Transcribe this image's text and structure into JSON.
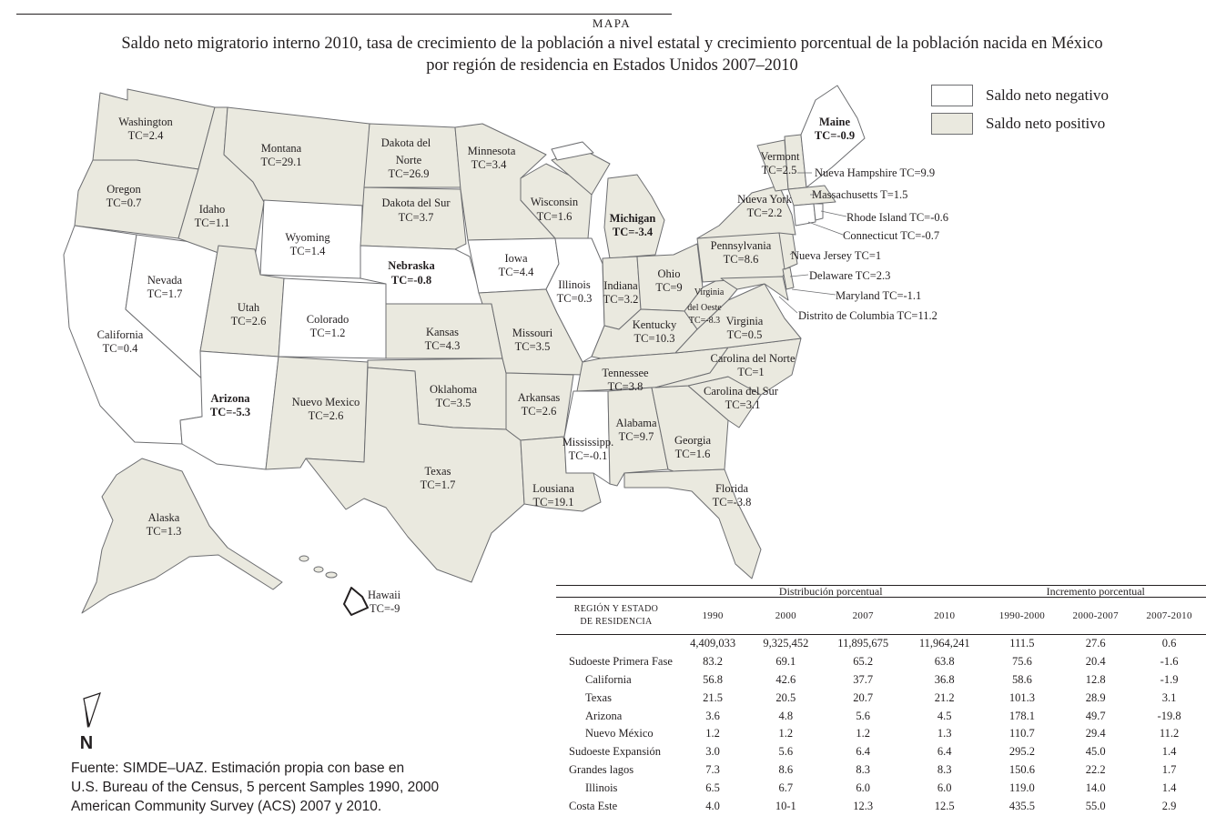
{
  "header": {
    "kicker": "MAPA",
    "title_line1": "Saldo neto migratorio interno 2010, tasa de crecimiento de la población a nivel estatal y crecimiento porcentual de la población nacida en México",
    "title_line2": "por región de residencia en Estados Unidos 2007–2010"
  },
  "legend": {
    "negative": "Saldo neto negativo",
    "positive": "Saldo neto positivo"
  },
  "colors": {
    "positive_fill": "#eae9df",
    "negative_fill": "#ffffff",
    "border": "#6d6e71",
    "text": "#231f20"
  },
  "states": {
    "washington": {
      "name": "Washington",
      "tc": "TC=2.4"
    },
    "oregon": {
      "name": "Oregon",
      "tc": "TC=0.7"
    },
    "california": {
      "name": "California",
      "tc": "TC=0.4"
    },
    "nevada": {
      "name": "Nevada",
      "tc": "TC=1.7"
    },
    "idaho": {
      "name": "Idaho",
      "tc": "TC=1.1"
    },
    "montana": {
      "name": "Montana",
      "tc": "TC=29.1"
    },
    "wyoming": {
      "name": "Wyoming",
      "tc": "TC=1.4"
    },
    "utah": {
      "name": "Utah",
      "tc": "TC=2.6"
    },
    "arizona": {
      "name": "Arizona",
      "tc": "TC=-5.3"
    },
    "colorado": {
      "name": "Colorado",
      "tc": "TC=1.2"
    },
    "nuevo_mexico": {
      "name": "Nuevo Mexico",
      "tc": "TC=2.6"
    },
    "dakota_norte": {
      "name1": "Dakota del",
      "name2": "Norte",
      "tc": "TC=26.9"
    },
    "dakota_sur": {
      "name": "Dakota del Sur",
      "tc": "TC=3.7"
    },
    "nebraska": {
      "name": "Nebraska",
      "tc": "TC=-0.8"
    },
    "kansas": {
      "name": "Kansas",
      "tc": "TC=4.3"
    },
    "oklahoma": {
      "name": "Oklahoma",
      "tc": "TC=3.5"
    },
    "texas": {
      "name": "Texas",
      "tc": "TC=1.7"
    },
    "minnesota": {
      "name": "Minnesota",
      "tc": "TC=3.4"
    },
    "iowa": {
      "name": "Iowa",
      "tc": "TC=4.4"
    },
    "missouri": {
      "name": "Missouri",
      "tc": "TC=3.5"
    },
    "arkansas": {
      "name": "Arkansas",
      "tc": "TC=2.6"
    },
    "louisiana": {
      "name": "Lousiana",
      "tc": "TC=19.1"
    },
    "wisconsin": {
      "name": "Wisconsin",
      "tc": "TC=1.6"
    },
    "illinois": {
      "name": "Illinois",
      "tc": "TC=0.3"
    },
    "michigan": {
      "name": "Michigan",
      "tc": "TC=-3.4"
    },
    "indiana": {
      "name": "Indiana",
      "tc": "TC=3.2"
    },
    "ohio": {
      "name": "Ohio",
      "tc": "TC=9"
    },
    "kentucky": {
      "name": "Kentucky",
      "tc": "TC=10.3"
    },
    "tennessee": {
      "name": "Tennessee",
      "tc": "TC=3.8"
    },
    "mississippi": {
      "name": "Mississipp.",
      "tc": "TC=-0.1"
    },
    "alabama": {
      "name": "Alabama",
      "tc": "TC=9.7"
    },
    "georgia": {
      "name": "Georgia",
      "tc": "TC=1.6"
    },
    "florida": {
      "name": "Florida",
      "tc": "TC=-3.8"
    },
    "carolina_sur": {
      "name": "Carolina del Sur",
      "tc": "TC=3.1"
    },
    "carolina_norte": {
      "name": "Carolina del Norte",
      "tc": "TC=1"
    },
    "virginia": {
      "name": "Virginia",
      "tc": "TC=0.5"
    },
    "virginia_oeste": {
      "name1": "Virginia",
      "name2": "del Oeste",
      "tc": "TC=-8.3"
    },
    "pennsylvania": {
      "name": "Pennsylvania",
      "tc": "TC=8.6"
    },
    "nueva_york": {
      "name": "Nueva York",
      "tc": "TC=2.2"
    },
    "vermont": {
      "name": "Vermont",
      "tc": "TC=2.5"
    },
    "maine": {
      "name": "Maine",
      "tc": "TC=-0.9"
    },
    "alaska": {
      "name": "Alaska",
      "tc": "TC=1.3"
    },
    "hawaii": {
      "name": "Hawaii",
      "tc": "TC=-9"
    }
  },
  "callouts": [
    "Nueva Hampshire TC=9.9",
    "Massachusetts T=1.5",
    "Rhode Island TC=-0.6",
    "Connecticut TC=-0.7",
    "Nueva Jersey TC=1",
    "Delaware TC=2.3",
    "Maryland TC=-1.1",
    "Distrito de Columbia TC=11.2"
  ],
  "compass": "N",
  "source": {
    "line1": "Fuente: SIMDE–UAZ. Estimación propia con base en",
    "line2": "U.S. Bureau of the Census, 5 percent Samples 1990, 2000",
    "line3": "American Community Survey (ACS) 2007 y 2010."
  },
  "table": {
    "group1": "Distribución porcentual",
    "group2": "Incremento porcentual",
    "col_region_line1": "REGIÓN Y ESTADO",
    "col_region_line2": "DE RESIDENCIA",
    "columns": [
      "1990",
      "2000",
      "2007",
      "2010",
      "1990-2000",
      "2000-2007",
      "2007-2010"
    ],
    "rows": [
      {
        "name": "",
        "indent": false,
        "values": [
          "4,409,033",
          "9,325,452",
          "11,895,675",
          "11,964,241",
          "111.5",
          "27.6",
          "0.6"
        ]
      },
      {
        "name": "Sudoeste Primera Fase",
        "indent": false,
        "values": [
          "83.2",
          "69.1",
          "65.2",
          "63.8",
          "75.6",
          "20.4",
          "-1.6"
        ]
      },
      {
        "name": "California",
        "indent": true,
        "values": [
          "56.8",
          "42.6",
          "37.7",
          "36.8",
          "58.6",
          "12.8",
          "-1.9"
        ]
      },
      {
        "name": "Texas",
        "indent": true,
        "values": [
          "21.5",
          "20.5",
          "20.7",
          "21.2",
          "101.3",
          "28.9",
          "3.1"
        ]
      },
      {
        "name": "Arizona",
        "indent": true,
        "values": [
          "3.6",
          "4.8",
          "5.6",
          "4.5",
          "178.1",
          "49.7",
          "-19.8"
        ]
      },
      {
        "name": "Nuevo México",
        "indent": true,
        "values": [
          "1.2",
          "1.2",
          "1.2",
          "1.3",
          "110.7",
          "29.4",
          "11.2"
        ]
      },
      {
        "name": "Sudoeste Expansión",
        "indent": false,
        "values": [
          "3.0",
          "5.6",
          "6.4",
          "6.4",
          "295.2",
          "45.0",
          "1.4"
        ]
      },
      {
        "name": "Grandes lagos",
        "indent": false,
        "values": [
          "7.3",
          "8.6",
          "8.3",
          "8.3",
          "150.6",
          "22.2",
          "1.7"
        ]
      },
      {
        "name": "Illinois",
        "indent": true,
        "values": [
          "6.5",
          "6.7",
          "6.0",
          "6.0",
          "119.0",
          "14.0",
          "1.4"
        ]
      },
      {
        "name": "Costa Este",
        "indent": false,
        "values": [
          "4.0",
          "10-1",
          "12.3",
          "12.5",
          "435.5",
          "55.0",
          "2.9"
        ]
      }
    ]
  }
}
